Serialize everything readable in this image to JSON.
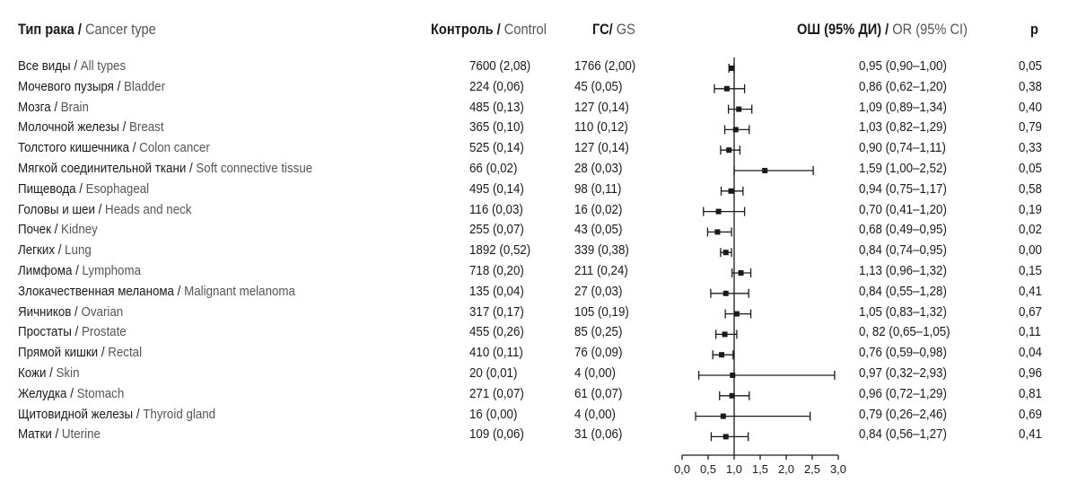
{
  "headers": {
    "type_ru": "Тип рака",
    "type_en": "Cancer type",
    "control_ru": "Контроль",
    "control_en": "Control",
    "gs_ru": "ГС",
    "gs_en": "GS",
    "or_ru": "ОШ (95% ДИ)",
    "or_en": "OR (95% CI)",
    "p": "p"
  },
  "rows": [
    {
      "name_ru": "Все виды",
      "name_en": "All types",
      "control": "7600 (2,08)",
      "gs": "1766 (2,00)",
      "or_text": "0,95 (0,90–1,00)",
      "p": "0,05"
    },
    {
      "name_ru": "Мочевого пузыря",
      "name_en": "Bladder",
      "control": "224 (0,06)",
      "gs": "45 (0,05)",
      "or_text": "0,86 (0,62–1,20)",
      "p": "0,38"
    },
    {
      "name_ru": "Мозга",
      "name_en": "Brain",
      "control": "485 (0,13)",
      "gs": "127 (0,14)",
      "or_text": "1,09 (0,89–1,34)",
      "p": "0,40"
    },
    {
      "name_ru": "Молочной железы",
      "name_en": "Breast",
      "control": "365 (0,10)",
      "gs": "110 (0,12)",
      "or_text": "1,03 (0,82–1,29)",
      "p": "0,79"
    },
    {
      "name_ru": "Толстого кишечника",
      "name_en": "Colon cancer",
      "control": "525 (0,14)",
      "gs": "127 (0,14)",
      "or_text": "0,90 (0,74–1,11)",
      "p": "0,33"
    },
    {
      "name_ru": "Мягкой соединительной ткани",
      "name_en": "Soft connective tissue",
      "control": "66 (0,02)",
      "gs": "28 (0,03)",
      "or_text": "1,59 (1,00–2,52)",
      "p": "0,05"
    },
    {
      "name_ru": "Пищевода",
      "name_en": "Esophageal",
      "control": "495 (0,14)",
      "gs": "98 (0,11)",
      "or_text": "0,94 (0,75–1,17)",
      "p": "0,58"
    },
    {
      "name_ru": "Головы и шеи",
      "name_en": "Heads and neck",
      "control": "116 (0,03)",
      "gs": "16 (0,02)",
      "or_text": "0,70 (0,41–1,20)",
      "p": "0,19"
    },
    {
      "name_ru": "Почек",
      "name_en": "Kidney",
      "control": "255 (0,07)",
      "gs": "43 (0,05)",
      "or_text": "0,68 (0,49–0,95)",
      "p": "0,02"
    },
    {
      "name_ru": "Легких",
      "name_en": "Lung",
      "control": "1892 (0,52)",
      "gs": "339 (0,38)",
      "or_text": "0,84 (0,74–0,95)",
      "p": "0,00"
    },
    {
      "name_ru": "Лимфома",
      "name_en": "Lymphoma",
      "control": "718 (0,20)",
      "gs": "211 (0,24)",
      "or_text": "1,13 (0,96–1,32)",
      "p": "0,15"
    },
    {
      "name_ru": "Злокачественная меланома",
      "name_en": "Malignant melanoma",
      "control": "135 (0,04)",
      "gs": "27 (0,03)",
      "or_text": "0,84 (0,55–1,28)",
      "p": "0,41"
    },
    {
      "name_ru": "Яичников",
      "name_en": "Ovarian",
      "control": "317 (0,17)",
      "gs": "105 (0,19)",
      "or_text": "1,05 (0,83–1,32)",
      "p": "0,67"
    },
    {
      "name_ru": "Простаты",
      "name_en": "Prostate",
      "control": "455 (0,26)",
      "gs": "85 (0,25)",
      "or_text": "0, 82 (0,65–1,05)",
      "p": "0,11"
    },
    {
      "name_ru": "Прямой кишки",
      "name_en": "Rectal",
      "control": "410 (0,11)",
      "gs": "76 (0,09)",
      "or_text": "0,76 (0,59–0,98)",
      "p": "0,04"
    },
    {
      "name_ru": "Кожи",
      "name_en": "Skin",
      "control": "20 (0,01)",
      "gs": "4 (0,00)",
      "or_text": "0,97 (0,32–2,93)",
      "p": "0,96"
    },
    {
      "name_ru": "Желудка",
      "name_en": "Stomach",
      "control": "271 (0,07)",
      "gs": "61 (0,07)",
      "or_text": "0,96 (0,72–1,29)",
      "p": "0,81"
    },
    {
      "name_ru": "Щитовидной железы",
      "name_en": "Thyroid gland",
      "control": "16 (0,00)",
      "gs": "4 (0,00)",
      "or_text": "0,79 (0,26–2,46)",
      "p": "0,69"
    },
    {
      "name_ru": "Матки",
      "name_en": "Uterine",
      "control": "109 (0,06)",
      "gs": "31 (0,06)",
      "or_text": "0,84 (0,56–1,27)",
      "p": "0,41"
    }
  ],
  "chart_data": {
    "type": "forest",
    "xlabel": "",
    "xlim": [
      0,
      3
    ],
    "xticks": [
      0,
      0.5,
      1,
      1.5,
      2,
      2.5,
      3
    ],
    "xtick_labels": [
      "0,0",
      "0,5",
      "1,0",
      "1,5",
      "2,0",
      "2,5",
      "3,0"
    ],
    "reference_line": 1.0,
    "points": [
      {
        "category": "All types",
        "or": 0.95,
        "low": 0.9,
        "high": 1.0
      },
      {
        "category": "Bladder",
        "or": 0.86,
        "low": 0.62,
        "high": 1.2
      },
      {
        "category": "Brain",
        "or": 1.09,
        "low": 0.89,
        "high": 1.34
      },
      {
        "category": "Breast",
        "or": 1.03,
        "low": 0.82,
        "high": 1.29
      },
      {
        "category": "Colon cancer",
        "or": 0.9,
        "low": 0.74,
        "high": 1.11
      },
      {
        "category": "Soft connective tissue",
        "or": 1.59,
        "low": 1.0,
        "high": 2.52
      },
      {
        "category": "Esophageal",
        "or": 0.94,
        "low": 0.75,
        "high": 1.17
      },
      {
        "category": "Heads and neck",
        "or": 0.7,
        "low": 0.41,
        "high": 1.2
      },
      {
        "category": "Kidney",
        "or": 0.68,
        "low": 0.49,
        "high": 0.95
      },
      {
        "category": "Lung",
        "or": 0.84,
        "low": 0.74,
        "high": 0.95
      },
      {
        "category": "Lymphoma",
        "or": 1.13,
        "low": 0.96,
        "high": 1.32
      },
      {
        "category": "Malignant melanoma",
        "or": 0.84,
        "low": 0.55,
        "high": 1.28
      },
      {
        "category": "Ovarian",
        "or": 1.05,
        "low": 0.83,
        "high": 1.32
      },
      {
        "category": "Prostate",
        "or": 0.82,
        "low": 0.65,
        "high": 1.05
      },
      {
        "category": "Rectal",
        "or": 0.76,
        "low": 0.59,
        "high": 0.98
      },
      {
        "category": "Skin",
        "or": 0.97,
        "low": 0.32,
        "high": 2.93
      },
      {
        "category": "Stomach",
        "or": 0.96,
        "low": 0.72,
        "high": 1.29
      },
      {
        "category": "Thyroid gland",
        "or": 0.79,
        "low": 0.26,
        "high": 2.46
      },
      {
        "category": "Uterine",
        "or": 0.84,
        "low": 0.56,
        "high": 1.27
      }
    ]
  }
}
